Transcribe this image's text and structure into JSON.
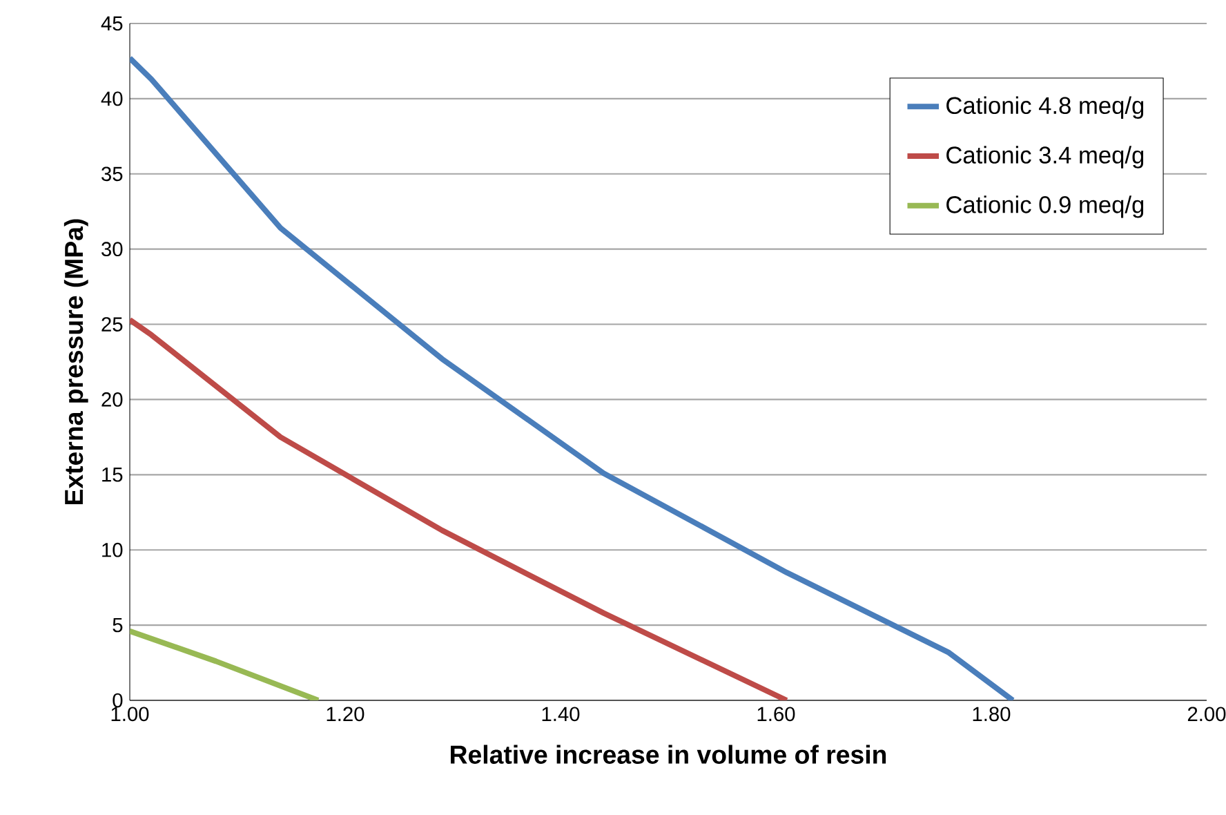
{
  "chart_data": {
    "type": "line",
    "xlabel": "Relative increase in volume of  resin",
    "ylabel": "Externa pressure (MPa)",
    "xlim": [
      1,
      2
    ],
    "ylim": [
      0,
      45
    ],
    "xticks": [
      {
        "value": 1,
        "label": "1.00"
      },
      {
        "value": 1.2,
        "label": "1.20"
      },
      {
        "value": 1.4,
        "label": "1.40"
      },
      {
        "value": 1.6,
        "label": "1.60"
      },
      {
        "value": 1.8,
        "label": "1.80"
      },
      {
        "value": 2,
        "label": "2.00"
      }
    ],
    "yticks": [
      0,
      5,
      10,
      15,
      20,
      25,
      30,
      35,
      40,
      45
    ],
    "grid": "y",
    "legend": "top right",
    "marker": "none",
    "line_style": "solid",
    "series": [
      {
        "name": "Cationic 4.8 meq/g",
        "color": "#4a7ebb",
        "x": [
          1.0,
          1.02,
          1.14,
          1.29,
          1.44,
          1.61,
          1.76,
          1.82
        ],
        "values": [
          42.7,
          41.3,
          31.4,
          22.7,
          15.1,
          8.5,
          3.2,
          0
        ]
      },
      {
        "name": "Cationic 3.4 meq/g",
        "color": "#be4b48",
        "x": [
          1.0,
          1.02,
          1.14,
          1.29,
          1.44,
          1.61
        ],
        "values": [
          25.3,
          24.3,
          17.5,
          11.3,
          5.8,
          0
        ]
      },
      {
        "name": "Cationic 0.9 meq/g",
        "color": "#98b954",
        "x": [
          1.0,
          1.08,
          1.175
        ],
        "values": [
          4.6,
          2.6,
          0
        ]
      }
    ]
  }
}
